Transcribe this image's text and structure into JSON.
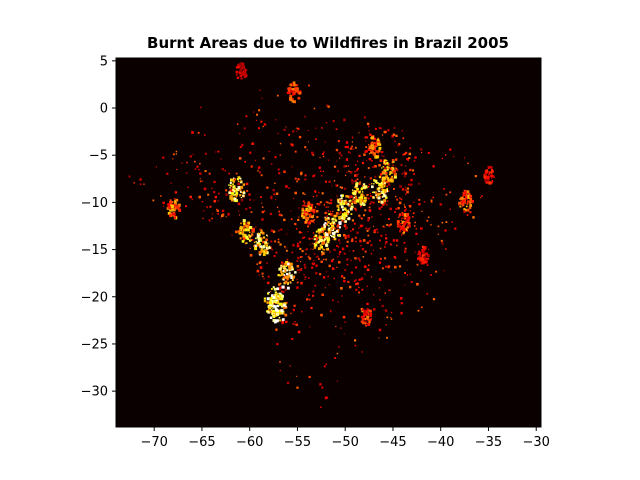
{
  "chart_data": {
    "type": "heatmap",
    "title": "Burnt Areas due to Wildfires in Brazil 2005",
    "xlabel": "",
    "ylabel": "",
    "xlim": [
      -74,
      -29.5
    ],
    "ylim": [
      -33.8,
      5.3
    ],
    "x_ticks": [
      -70,
      -65,
      -60,
      -55,
      -50,
      -45,
      -40,
      -35,
      -30
    ],
    "x_tick_labels": [
      "−70",
      "−65",
      "−60",
      "−55",
      "−50",
      "−45",
      "−40",
      "−35",
      "−30"
    ],
    "y_ticks": [
      5,
      0,
      -5,
      -10,
      -15,
      -20,
      -25,
      -30
    ],
    "y_tick_labels": [
      "5",
      "0",
      "−5",
      "−10",
      "−15",
      "−20",
      "−25",
      "−30"
    ],
    "colormap": "hot",
    "background_color": "#0a0000",
    "grid": false,
    "legend": "none",
    "hotspots": [
      {
        "x": -57.6,
        "y": -20.4,
        "intensity": 1.0
      },
      {
        "x": -57.2,
        "y": -21.2,
        "intensity": 0.95
      },
      {
        "x": -56.2,
        "y": -17.6,
        "intensity": 0.9
      },
      {
        "x": -58.8,
        "y": -14.2,
        "intensity": 0.85
      },
      {
        "x": -52.6,
        "y": -14.0,
        "intensity": 0.8
      },
      {
        "x": -51.5,
        "y": -12.5,
        "intensity": 0.95
      },
      {
        "x": -50.2,
        "y": -10.5,
        "intensity": 0.9
      },
      {
        "x": -48.5,
        "y": -9.0,
        "intensity": 0.8
      },
      {
        "x": -46.5,
        "y": -8.5,
        "intensity": 0.85
      },
      {
        "x": -45.5,
        "y": -6.5,
        "intensity": 0.75
      },
      {
        "x": -47.0,
        "y": -4.0,
        "intensity": 0.6
      },
      {
        "x": -61.5,
        "y": -8.5,
        "intensity": 0.85
      },
      {
        "x": -68.0,
        "y": -10.5,
        "intensity": 0.6
      },
      {
        "x": -37.5,
        "y": -9.8,
        "intensity": 0.6
      },
      {
        "x": -35.0,
        "y": -7.0,
        "intensity": 0.4
      },
      {
        "x": -54.0,
        "y": -11.0,
        "intensity": 0.6
      },
      {
        "x": -55.5,
        "y": 1.8,
        "intensity": 0.5
      },
      {
        "x": -61.0,
        "y": 4.0,
        "intensity": 0.35
      },
      {
        "x": -48.0,
        "y": -22.0,
        "intensity": 0.5
      },
      {
        "x": -44.0,
        "y": -12.0,
        "intensity": 0.55
      },
      {
        "x": -42.0,
        "y": -15.5,
        "intensity": 0.4
      },
      {
        "x": -60.5,
        "y": -13.0,
        "intensity": 0.75
      }
    ]
  }
}
